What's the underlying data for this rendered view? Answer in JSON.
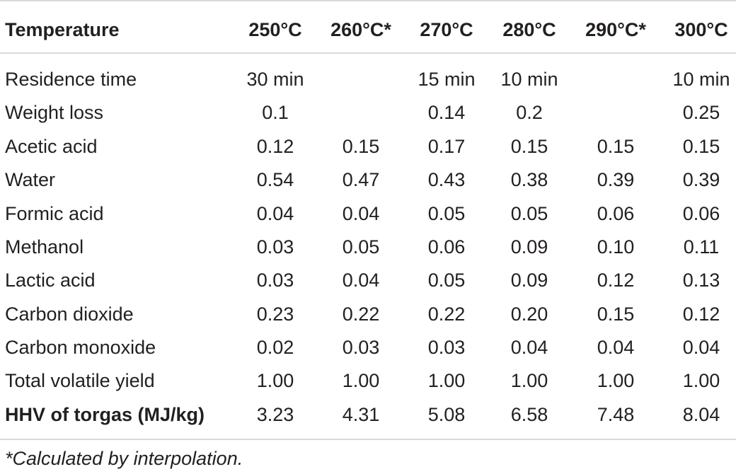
{
  "table": {
    "header": [
      "Temperature",
      "250°C",
      "260°C*",
      "270°C",
      "280°C",
      "290°C*",
      "300°C"
    ],
    "rows": [
      {
        "label": "Residence time",
        "values": [
          "30 min",
          "",
          "15 min",
          "10 min",
          "",
          "10 min"
        ]
      },
      {
        "label": "Weight loss",
        "values": [
          "0.1",
          "",
          "0.14",
          "0.2",
          "",
          "0.25"
        ]
      },
      {
        "label": "Acetic acid",
        "values": [
          "0.12",
          "0.15",
          "0.17",
          "0.15",
          "0.15",
          "0.15"
        ]
      },
      {
        "label": "Water",
        "values": [
          "0.54",
          "0.47",
          "0.43",
          "0.38",
          "0.39",
          "0.39"
        ]
      },
      {
        "label": "Formic acid",
        "values": [
          "0.04",
          "0.04",
          "0.05",
          "0.05",
          "0.06",
          "0.06"
        ]
      },
      {
        "label": "Methanol",
        "values": [
          "0.03",
          "0.05",
          "0.06",
          "0.09",
          "0.10",
          "0.11"
        ]
      },
      {
        "label": "Lactic acid",
        "values": [
          "0.03",
          "0.04",
          "0.05",
          "0.09",
          "0.12",
          "0.13"
        ]
      },
      {
        "label": "Carbon dioxide",
        "values": [
          "0.23",
          "0.22",
          "0.22",
          "0.20",
          "0.15",
          "0.12"
        ]
      },
      {
        "label": "Carbon monoxide",
        "values": [
          "0.02",
          "0.03",
          "0.03",
          "0.04",
          "0.04",
          "0.04"
        ]
      },
      {
        "label": "Total volatile yield",
        "values": [
          "1.00",
          "1.00",
          "1.00",
          "1.00",
          "1.00",
          "1.00"
        ]
      },
      {
        "label": "HHV of torgas (MJ/kg)",
        "values": [
          "3.23",
          "4.31",
          "5.08",
          "6.58",
          "7.48",
          "8.04"
        ]
      }
    ]
  },
  "footnote": "*Calculated by interpolation."
}
